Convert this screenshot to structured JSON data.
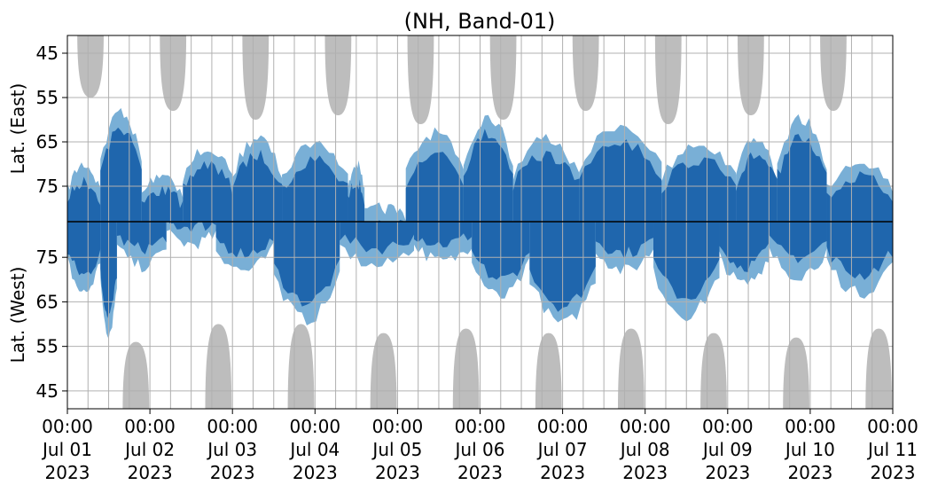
{
  "chart_data": {
    "type": "heatmap",
    "title": "(NH, Band-01)",
    "ylabel_top": "Lat. (East)",
    "ylabel_bottom": "Lat. (West)",
    "x_ticks": [
      {
        "time": "00:00",
        "date": "Jul 01",
        "year": "2023"
      },
      {
        "time": "00:00",
        "date": "Jul 02",
        "year": "2023"
      },
      {
        "time": "00:00",
        "date": "Jul 03",
        "year": "2023"
      },
      {
        "time": "00:00",
        "date": "Jul 04",
        "year": "2023"
      },
      {
        "time": "00:00",
        "date": "Jul 05",
        "year": "2023"
      },
      {
        "time": "00:00",
        "date": "Jul 06",
        "year": "2023"
      },
      {
        "time": "00:00",
        "date": "Jul 07",
        "year": "2023"
      },
      {
        "time": "00:00",
        "date": "Jul 08",
        "year": "2023"
      },
      {
        "time": "00:00",
        "date": "Jul 09",
        "year": "2023"
      },
      {
        "time": "00:00",
        "date": "Jul 10",
        "year": "2023"
      },
      {
        "time": "00:00",
        "date": "Jul 11",
        "year": "2023"
      }
    ],
    "y_ticks_top": [
      "45",
      "55",
      "65",
      "75"
    ],
    "y_ticks_bottom": [
      "75",
      "65",
      "55",
      "45"
    ],
    "x_range": [
      "2023-07-01T00:00",
      "2023-07-11T00:00"
    ],
    "lat_range_top": [
      41,
      83
    ],
    "lat_range_bottom": [
      83,
      41
    ],
    "grid": true,
    "colors": {
      "daylight": "#bdbdbd",
      "signal_strong": "#1f66ad",
      "signal_weak": "#6aa6d2",
      "divider": "#000000",
      "grid": "#b0b0b0"
    },
    "daylight_top": [
      {
        "center_day": 0.28,
        "min_lat": 55
      },
      {
        "center_day": 1.28,
        "min_lat": 58
      },
      {
        "center_day": 2.28,
        "min_lat": 60
      },
      {
        "center_day": 3.28,
        "min_lat": 59
      },
      {
        "center_day": 4.28,
        "min_lat": 61
      },
      {
        "center_day": 5.28,
        "min_lat": 60
      },
      {
        "center_day": 6.28,
        "min_lat": 58
      },
      {
        "center_day": 7.28,
        "min_lat": 61
      },
      {
        "center_day": 8.28,
        "min_lat": 59
      },
      {
        "center_day": 9.28,
        "min_lat": 58
      }
    ],
    "daylight_bottom": [
      {
        "center_day": 0.83,
        "min_lat": 56
      },
      {
        "center_day": 1.83,
        "min_lat": 60
      },
      {
        "center_day": 2.83,
        "min_lat": 60
      },
      {
        "center_day": 3.83,
        "min_lat": 58
      },
      {
        "center_day": 4.83,
        "min_lat": 59
      },
      {
        "center_day": 5.83,
        "min_lat": 58
      },
      {
        "center_day": 6.83,
        "min_lat": 59
      },
      {
        "center_day": 7.83,
        "min_lat": 58
      },
      {
        "center_day": 8.83,
        "min_lat": 57
      },
      {
        "center_day": 9.83,
        "min_lat": 59
      }
    ],
    "activity_top": [
      {
        "start_day": 0.0,
        "end_day": 0.4,
        "min_lat": 70
      },
      {
        "start_day": 0.4,
        "end_day": 0.9,
        "min_lat": 58
      },
      {
        "start_day": 0.9,
        "end_day": 1.4,
        "min_lat": 72
      },
      {
        "start_day": 1.4,
        "end_day": 2.0,
        "min_lat": 66
      },
      {
        "start_day": 2.0,
        "end_day": 2.6,
        "min_lat": 64
      },
      {
        "start_day": 2.6,
        "end_day": 3.4,
        "min_lat": 65
      },
      {
        "start_day": 3.4,
        "end_day": 3.6,
        "min_lat": 70
      },
      {
        "start_day": 3.6,
        "end_day": 4.1,
        "min_lat": 80
      },
      {
        "start_day": 4.1,
        "end_day": 4.8,
        "min_lat": 63
      },
      {
        "start_day": 4.8,
        "end_day": 5.4,
        "min_lat": 59
      },
      {
        "start_day": 5.4,
        "end_day": 6.2,
        "min_lat": 64
      },
      {
        "start_day": 6.2,
        "end_day": 7.2,
        "min_lat": 61
      },
      {
        "start_day": 7.2,
        "end_day": 8.1,
        "min_lat": 65
      },
      {
        "start_day": 8.1,
        "end_day": 8.6,
        "min_lat": 64
      },
      {
        "start_day": 8.6,
        "end_day": 9.2,
        "min_lat": 60
      },
      {
        "start_day": 9.2,
        "end_day": 10.0,
        "min_lat": 69
      }
    ],
    "activity_bottom": [
      {
        "start_day": 0.0,
        "end_day": 0.4,
        "min_lat": 67
      },
      {
        "start_day": 0.4,
        "end_day": 0.6,
        "min_lat": 58
      },
      {
        "start_day": 0.6,
        "end_day": 1.2,
        "min_lat": 73
      },
      {
        "start_day": 1.2,
        "end_day": 1.8,
        "min_lat": 78
      },
      {
        "start_day": 1.8,
        "end_day": 2.5,
        "min_lat": 72
      },
      {
        "start_day": 2.5,
        "end_day": 3.3,
        "min_lat": 61
      },
      {
        "start_day": 3.3,
        "end_day": 4.2,
        "min_lat": 73
      },
      {
        "start_day": 4.2,
        "end_day": 4.9,
        "min_lat": 74
      },
      {
        "start_day": 4.9,
        "end_day": 5.6,
        "min_lat": 66
      },
      {
        "start_day": 5.6,
        "end_day": 6.4,
        "min_lat": 60
      },
      {
        "start_day": 6.4,
        "end_day": 7.1,
        "min_lat": 72
      },
      {
        "start_day": 7.1,
        "end_day": 7.9,
        "min_lat": 62
      },
      {
        "start_day": 7.9,
        "end_day": 8.5,
        "min_lat": 69
      },
      {
        "start_day": 8.5,
        "end_day": 9.2,
        "min_lat": 71
      },
      {
        "start_day": 9.2,
        "end_day": 10.0,
        "min_lat": 67
      }
    ]
  }
}
